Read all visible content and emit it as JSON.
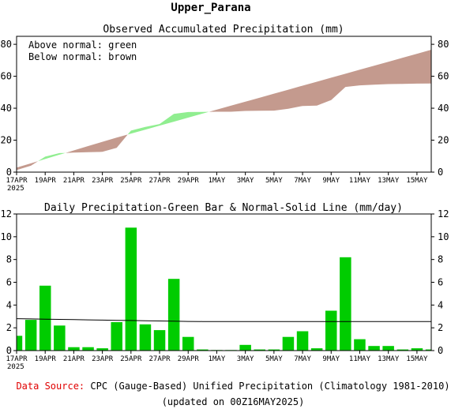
{
  "page": {
    "title": "Upper_Parana",
    "source_prefix": "Data Source:",
    "source_text": "CPC (Gauge-Based) Unified Precipitation (Climatology 1981-2010)",
    "updated_text": "(updated on 00Z16MAY2025)"
  },
  "colors": {
    "above": "#90ee90",
    "below": "#c49a8e",
    "bar": "#00cc00",
    "normal_line": "#000000",
    "source_red": "#e00000"
  },
  "x_labels": [
    "17APR",
    "19APR",
    "21APR",
    "23APR",
    "25APR",
    "27APR",
    "29APR",
    "1MAY",
    "3MAY",
    "5MAY",
    "7MAY",
    "9MAY",
    "11MAY",
    "13MAY",
    "15MAY"
  ],
  "year_label": "2025",
  "chart_data": [
    {
      "type": "area",
      "title": "Observed Accumulated Precipitation (mm)",
      "legend_lines": [
        "Above normal: green",
        "Below normal: brown"
      ],
      "legend_position": "top-left",
      "ylim": [
        0,
        85
      ],
      "yticks": [
        0,
        20,
        40,
        60,
        80
      ],
      "x": [
        "17APR",
        "18APR",
        "19APR",
        "20APR",
        "21APR",
        "22APR",
        "23APR",
        "24APR",
        "25APR",
        "26APR",
        "27APR",
        "28APR",
        "29APR",
        "30APR",
        "1MAY",
        "2MAY",
        "3MAY",
        "4MAY",
        "5MAY",
        "6MAY",
        "7MAY",
        "8MAY",
        "9MAY",
        "10MAY",
        "11MAY",
        "12MAY",
        "13MAY",
        "14MAY",
        "15MAY",
        "16MAY"
      ],
      "series": [
        {
          "name": "Observed",
          "values": [
            1.3,
            4.0,
            9.7,
            11.9,
            12.2,
            12.5,
            12.7,
            15.2,
            26.0,
            28.3,
            30.1,
            36.4,
            37.6,
            37.7,
            37.8,
            37.8,
            38.3,
            38.4,
            38.5,
            39.7,
            41.4,
            41.6,
            45.1,
            53.3,
            54.3,
            54.7,
            55.1,
            55.2,
            55.4,
            55.5
          ]
        },
        {
          "name": "Normal",
          "values": [
            2.8,
            5.5,
            8.2,
            10.9,
            13.6,
            16.3,
            19.0,
            21.6,
            24.1,
            26.6,
            29.1,
            31.6,
            34.1,
            36.6,
            39.1,
            41.6,
            44.1,
            46.6,
            49.1,
            51.6,
            54.1,
            56.6,
            59.1,
            61.6,
            64.1,
            66.6,
            69.1,
            71.6,
            74.1,
            76.6
          ]
        }
      ]
    },
    {
      "type": "bar",
      "title": "Daily Precipitation-Green Bar & Normal-Solid Line (mm/day)",
      "ylim": [
        0,
        12
      ],
      "yticks": [
        0,
        2,
        4,
        6,
        8,
        10,
        12
      ],
      "x": [
        "17APR",
        "18APR",
        "19APR",
        "20APR",
        "21APR",
        "22APR",
        "23APR",
        "24APR",
        "25APR",
        "26APR",
        "27APR",
        "28APR",
        "29APR",
        "30APR",
        "1MAY",
        "2MAY",
        "3MAY",
        "4MAY",
        "5MAY",
        "6MAY",
        "7MAY",
        "8MAY",
        "9MAY",
        "10MAY",
        "11MAY",
        "12MAY",
        "13MAY",
        "14MAY",
        "15MAY",
        "16MAY"
      ],
      "series": [
        {
          "name": "Daily Precipitation",
          "values": [
            1.3,
            2.7,
            5.7,
            2.2,
            0.3,
            0.3,
            0.2,
            2.5,
            10.8,
            2.3,
            1.8,
            6.3,
            1.2,
            0.1,
            0.05,
            0.05,
            0.5,
            0.1,
            0.1,
            1.2,
            1.7,
            0.2,
            3.5,
            8.2,
            1.0,
            0.4,
            0.4,
            0.1,
            0.2,
            0.1
          ]
        },
        {
          "name": "Normal",
          "values": [
            2.8,
            2.78,
            2.76,
            2.74,
            2.72,
            2.7,
            2.68,
            2.66,
            2.64,
            2.62,
            2.6,
            2.58,
            2.56,
            2.55,
            2.55,
            2.55,
            2.55,
            2.55,
            2.55,
            2.55,
            2.55,
            2.55,
            2.55,
            2.55,
            2.55,
            2.55,
            2.55,
            2.55,
            2.55,
            2.55
          ]
        }
      ]
    }
  ]
}
